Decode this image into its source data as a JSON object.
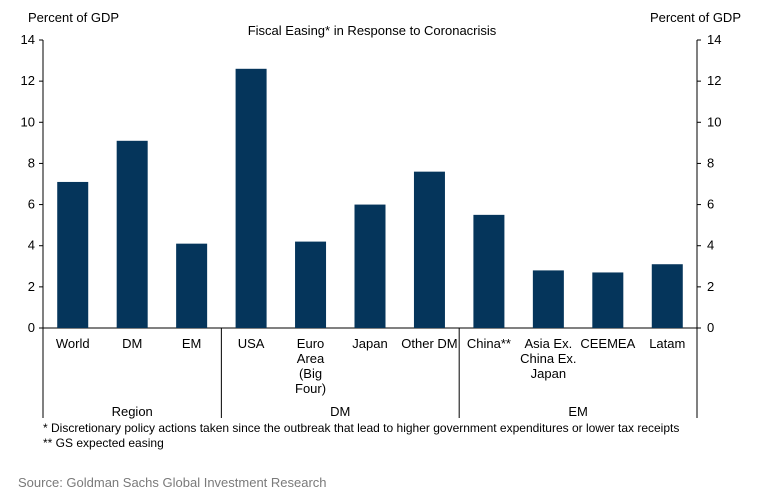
{
  "chart_data": {
    "type": "bar",
    "title": "Fiscal Easing* in Response to Coronacrisis",
    "ylabel_left": "Percent of GDP",
    "ylabel_right": "Percent of GDP",
    "ylim": [
      0,
      14
    ],
    "yticks": [
      0,
      2,
      4,
      6,
      8,
      10,
      12,
      14
    ],
    "categories": [
      [
        "World"
      ],
      [
        "DM"
      ],
      [
        "EM"
      ],
      [
        "USA"
      ],
      [
        "Euro",
        "Area",
        "(Big",
        "Four)"
      ],
      [
        "Japan"
      ],
      [
        "Other DM"
      ],
      [
        "China**"
      ],
      [
        "Asia Ex.",
        "China Ex.",
        "Japan"
      ],
      [
        "CEEMEA"
      ],
      [
        "Latam"
      ]
    ],
    "values": [
      7.1,
      9.1,
      4.1,
      12.6,
      4.2,
      6.0,
      7.6,
      5.5,
      2.8,
      2.7,
      3.1
    ],
    "groups": [
      {
        "label": "Region",
        "count": 3
      },
      {
        "label": "DM",
        "count": 4
      },
      {
        "label": "EM",
        "count": 4
      }
    ],
    "bar_color": "#05355b",
    "grid": false
  },
  "footnotes": [
    "* Discretionary policy actions taken since the outbreak that lead to higher government expenditures or lower tax receipts",
    "** GS expected easing"
  ],
  "source": "Source: Goldman Sachs Global Investment Research"
}
